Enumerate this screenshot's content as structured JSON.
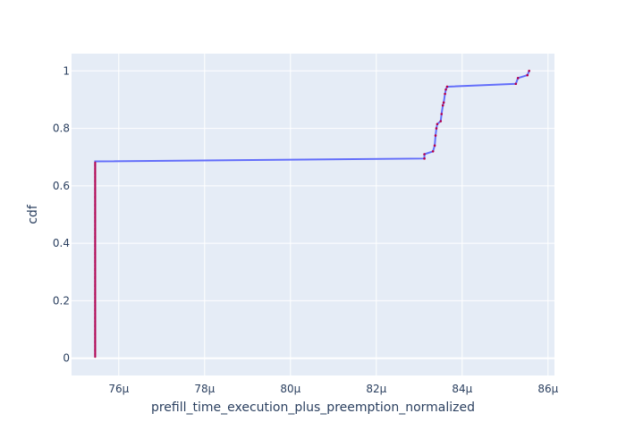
{
  "chart_data": {
    "type": "line",
    "title": "",
    "xlabel": "prefill_time_execution_plus_preemption_normalized",
    "ylabel": "cdf",
    "x_unit_suffix": "µ",
    "xlim": [
      74.9,
      86.15
    ],
    "ylim": [
      -0.06,
      1.06
    ],
    "x_ticks": [
      76,
      78,
      80,
      82,
      84,
      86
    ],
    "y_ticks": [
      0,
      0.2,
      0.4,
      0.6,
      0.8,
      1
    ],
    "x_tick_labels": [
      "76µ",
      "78µ",
      "80µ",
      "82µ",
      "84µ",
      "86µ"
    ],
    "y_tick_labels": [
      "0",
      "0.2",
      "0.4",
      "0.6",
      "0.8",
      "1"
    ],
    "grid": true,
    "colors": {
      "line": "#636efa",
      "markers": "#b5004c",
      "plot_bg": "#e5ecf6",
      "grid": "#ffffff",
      "text": "#2a3f5f"
    },
    "series": [
      {
        "x": [
          75.45,
          75.45,
          83.12,
          83.12,
          83.32,
          83.36,
          83.38,
          83.4,
          83.42,
          83.5,
          83.52,
          83.55,
          83.57,
          83.6,
          83.62,
          83.65,
          85.25,
          85.3,
          85.52,
          85.56
        ],
        "y": [
          0.005,
          0.685,
          0.695,
          0.71,
          0.72,
          0.74,
          0.775,
          0.8,
          0.815,
          0.825,
          0.85,
          0.88,
          0.89,
          0.92,
          0.935,
          0.945,
          0.955,
          0.975,
          0.985,
          1.0
        ]
      }
    ]
  }
}
